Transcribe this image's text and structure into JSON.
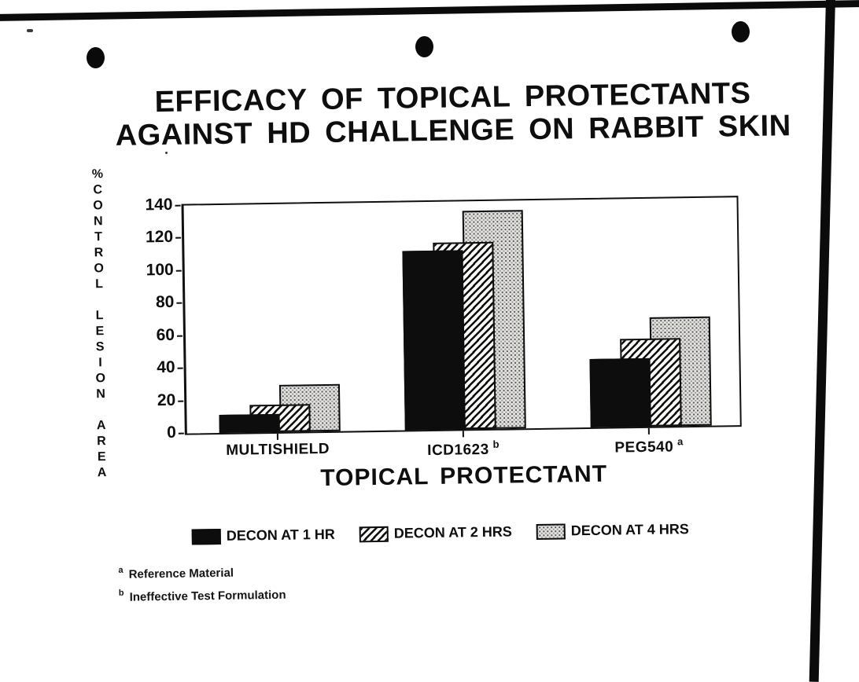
{
  "page": {
    "kind": "scanned slide with bar chart",
    "binder_holes": 3,
    "ink_color": "#0d0d0d",
    "paper_color": "#ffffff"
  },
  "title": {
    "line1": "EFFICACY OF TOPICAL PROTECTANTS",
    "line2": "AGAINST HD CHALLENGE ON RABBIT SKIN"
  },
  "chart_data": {
    "type": "bar",
    "bar_style": "overlapped-3d",
    "title": "EFFICACY OF TOPICAL PROTECTANTS AGAINST HD CHALLENGE ON RABBIT SKIN",
    "xlabel": "TOPICAL PROTECTANT",
    "ylabel": "% CONTROL LESION AREA",
    "ylabel_words": [
      "%CONTROL",
      "LESION",
      "AREA"
    ],
    "ylim": [
      0,
      140
    ],
    "yticks": [
      0,
      20,
      40,
      60,
      80,
      100,
      120,
      140
    ],
    "grid": false,
    "legend_position": "bottom",
    "categories": [
      "MULTISHIELD",
      "ICD1623",
      "PEG540"
    ],
    "category_superscripts": [
      "",
      "b",
      "a"
    ],
    "series": [
      {
        "name": "DECON AT 1 HR",
        "pattern": "solid-black",
        "values": [
          11,
          110,
          42
        ]
      },
      {
        "name": "DECON AT 2 HRS",
        "pattern": "diagonal-hatch",
        "values": [
          17,
          115,
          54
        ]
      },
      {
        "name": "DECON AT 4 HRS",
        "pattern": "dotted-gray",
        "values": [
          29,
          134,
          67
        ]
      }
    ]
  },
  "footnotes": [
    {
      "marker": "a",
      "text": "Reference Material"
    },
    {
      "marker": "b",
      "text": "Ineffective Test Formulation"
    }
  ]
}
